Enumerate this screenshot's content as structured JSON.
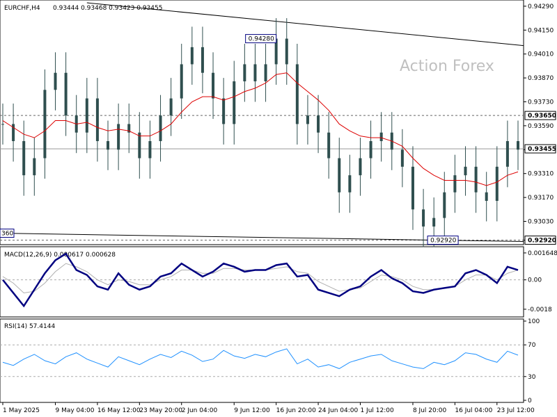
{
  "header": {
    "symbol": "EURCHF,H4",
    "ohlc": "0.93444 0.93468 0.93423 0.93455"
  },
  "watermark": "Action Forex",
  "colors": {
    "candles": "#2f4f4f",
    "ma": "#dd0000",
    "macd": "#000080",
    "signal": "#b0b0b0",
    "rsi": "#1e90ff",
    "trendline": "#000000",
    "grid_dashed": "#666666"
  },
  "chart_data": [
    {
      "type": "candlestick",
      "title": "EURCHF,H4",
      "ylim": [
        0.9291,
        0.9431
      ],
      "yticks": [
        0.9429,
        0.9415,
        0.9401,
        0.9387,
        0.9373,
        0.9359,
        0.9345,
        0.9331,
        0.9317,
        0.9303,
        0.9292
      ],
      "ytick_labels": [
        "0.94290",
        "0.94150",
        "0.94010",
        "0.93870",
        "0.93730",
        "0.93590",
        "0.93455",
        "0.93310",
        "0.93170",
        "0.93030",
        "0.92920"
      ],
      "current_price": 0.93455,
      "current_price_label": "0.93455",
      "resistance": 0.9365,
      "resistance_label": "0.93650",
      "support": 0.9292,
      "support_label": "0.92920",
      "high_annotation": "0.94280",
      "low_annotation": "0.92920",
      "left_annotation": "360",
      "price_series": [
        0.936,
        0.935,
        0.933,
        0.934,
        0.938,
        0.939,
        0.9365,
        0.9355,
        0.9375,
        0.935,
        0.9345,
        0.936,
        0.9355,
        0.934,
        0.935,
        0.9365,
        0.9375,
        0.9395,
        0.9405,
        0.939,
        0.9375,
        0.936,
        0.9385,
        0.9395,
        0.9385,
        0.9395,
        0.941,
        0.9395,
        0.936,
        0.9365,
        0.9355,
        0.934,
        0.932,
        0.933,
        0.934,
        0.935,
        0.9355,
        0.9345,
        0.9335,
        0.931,
        0.93,
        0.9305,
        0.932,
        0.933,
        0.9335,
        0.932,
        0.9315,
        0.9335,
        0.935,
        0.9345
      ],
      "ma_series": [
        0.9362,
        0.9358,
        0.9354,
        0.9352,
        0.9356,
        0.9362,
        0.9362,
        0.936,
        0.9361,
        0.9358,
        0.9356,
        0.9357,
        0.9356,
        0.9353,
        0.9353,
        0.9356,
        0.936,
        0.9367,
        0.9373,
        0.9376,
        0.9376,
        0.9374,
        0.9376,
        0.9379,
        0.9381,
        0.9384,
        0.9389,
        0.939,
        0.9384,
        0.9379,
        0.9374,
        0.9368,
        0.936,
        0.9356,
        0.9353,
        0.9352,
        0.9352,
        0.935,
        0.9347,
        0.934,
        0.9334,
        0.933,
        0.9327,
        0.9327,
        0.9327,
        0.9326,
        0.9324,
        0.9326,
        0.933,
        0.9332
      ]
    },
    {
      "type": "line",
      "title": "MACD(12,26,9) 0.000617 0.000628",
      "ylim": [
        -0.0021,
        0.0019
      ],
      "yticks": [
        0.001648,
        0.0,
        -0.0018
      ],
      "ytick_labels": [
        "0.001648",
        "0.00",
        "-0.0018"
      ],
      "series": [
        {
          "values": [
            0.0,
            -0.0008,
            -0.0016,
            -0.0006,
            0.0004,
            0.0012,
            0.0016,
            0.0006,
            0.0003,
            -0.0004,
            -0.0006,
            0.0004,
            -0.0003,
            -0.0006,
            -0.0004,
            0.0002,
            0.0004,
            0.001,
            0.0006,
            0.0002,
            0.0005,
            0.001,
            0.0008,
            0.0005,
            0.0006,
            0.0006,
            0.0009,
            0.001,
            0.0002,
            0.0003,
            -0.0006,
            -0.0008,
            -0.001,
            -0.0006,
            -0.0004,
            0.0002,
            0.0006,
            0.0001,
            -0.0002,
            -0.0007,
            -0.0008,
            -0.0006,
            -0.0005,
            -0.0004,
            0.0004,
            0.0006,
            0.0003,
            -0.0002,
            0.0008,
            0.0006
          ]
        },
        {
          "values": [
            0.0002,
            -0.0002,
            -0.0008,
            -0.0007,
            -0.0002,
            0.0005,
            0.001,
            0.0008,
            0.0005,
            0.0,
            -0.0003,
            0.0,
            -0.0001,
            -0.0003,
            -0.0003,
            0.0,
            0.0002,
            0.0006,
            0.0006,
            0.0004,
            0.0004,
            0.0007,
            0.0007,
            0.0006,
            0.0006,
            0.0006,
            0.0007,
            0.0008,
            0.0005,
            0.0004,
            -0.0001,
            -0.0004,
            -0.0007,
            -0.0006,
            -0.0005,
            -0.0001,
            0.0003,
            0.0002,
            0.0,
            -0.0004,
            -0.0006,
            -0.0006,
            -0.0005,
            -0.0004,
            0.0,
            0.0003,
            0.0003,
            0.0,
            0.0004,
            0.0006
          ]
        }
      ]
    },
    {
      "type": "line",
      "title": "RSI(14) 57.4144",
      "ylim": [
        0,
        100
      ],
      "yticks": [
        100,
        70,
        30,
        0
      ],
      "ytick_labels": [
        "100",
        "70",
        "30",
        "0"
      ],
      "levels": [
        70,
        30
      ],
      "series": [
        {
          "values": [
            48,
            44,
            52,
            58,
            50,
            46,
            55,
            60,
            52,
            47,
            42,
            55,
            50,
            45,
            52,
            58,
            54,
            62,
            57,
            49,
            52,
            63,
            56,
            53,
            58,
            55,
            61,
            65,
            46,
            52,
            42,
            45,
            40,
            48,
            52,
            56,
            58,
            50,
            46,
            42,
            40,
            48,
            45,
            50,
            60,
            58,
            52,
            48,
            62,
            57
          ]
        }
      ]
    }
  ],
  "x_axis": {
    "labels": [
      "1 May 2025",
      "9 May 04:00",
      "16 May 12:00",
      "23 May 20:00",
      "2 Jun 04:00",
      "9 Jun 12:00",
      "16 Jun 20:00",
      "24 Jun 04:00",
      "1 Jul 12:00",
      "8 Jul 20:00",
      "16 Jul 04:00",
      "23 Jul 12:00"
    ],
    "label_index": [
      0,
      5,
      9,
      13,
      17,
      22,
      26,
      30,
      34,
      39,
      43,
      47
    ]
  }
}
